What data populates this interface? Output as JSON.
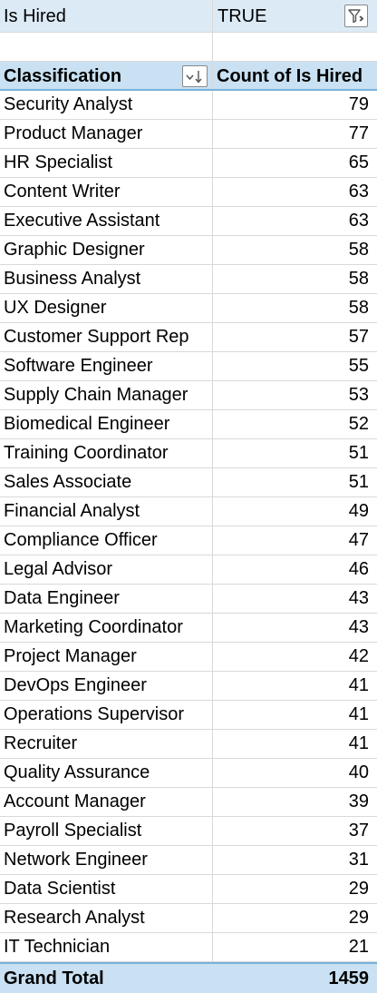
{
  "filter": {
    "field_label": "Is Hired",
    "value": "TRUE",
    "icon": "filter-funnel-icon"
  },
  "header": {
    "row_label": "Classification",
    "value_label": "Count of Is Hired",
    "sort_icon": "sort-descending-dropdown-icon"
  },
  "rows": [
    {
      "label": "Security Analyst",
      "value": "79"
    },
    {
      "label": "Product Manager",
      "value": "77"
    },
    {
      "label": "HR Specialist",
      "value": "65"
    },
    {
      "label": "Content Writer",
      "value": "63"
    },
    {
      "label": "Executive Assistant",
      "value": "63"
    },
    {
      "label": "Graphic Designer",
      "value": "58"
    },
    {
      "label": "Business Analyst",
      "value": "58"
    },
    {
      "label": "UX Designer",
      "value": "58"
    },
    {
      "label": "Customer Support Rep",
      "value": "57"
    },
    {
      "label": "Software Engineer",
      "value": "55"
    },
    {
      "label": "Supply Chain Manager",
      "value": "53"
    },
    {
      "label": "Biomedical Engineer",
      "value": "52"
    },
    {
      "label": "Training Coordinator",
      "value": "51"
    },
    {
      "label": "Sales Associate",
      "value": "51"
    },
    {
      "label": "Financial Analyst",
      "value": "49"
    },
    {
      "label": "Compliance Officer",
      "value": "47"
    },
    {
      "label": "Legal Advisor",
      "value": "46"
    },
    {
      "label": "Data Engineer",
      "value": "43"
    },
    {
      "label": "Marketing Coordinator",
      "value": "43"
    },
    {
      "label": "Project Manager",
      "value": "42"
    },
    {
      "label": "DevOps Engineer",
      "value": "41"
    },
    {
      "label": "Operations Supervisor",
      "value": "41"
    },
    {
      "label": "Recruiter",
      "value": "41"
    },
    {
      "label": "Quality Assurance",
      "value": "40"
    },
    {
      "label": "Account Manager",
      "value": "39"
    },
    {
      "label": "Payroll Specialist",
      "value": "37"
    },
    {
      "label": "Network Engineer",
      "value": "31"
    },
    {
      "label": "Data Scientist",
      "value": "29"
    },
    {
      "label": "Research Analyst",
      "value": "29"
    },
    {
      "label": "IT Technician",
      "value": "21"
    }
  ],
  "total": {
    "label": "Grand Total",
    "value": "1459"
  },
  "colors": {
    "filter_bg": "#dceaf6",
    "header_bg": "#c9e1f2",
    "header_border": "#7ab2db",
    "gridline": "#d9d9d9"
  }
}
